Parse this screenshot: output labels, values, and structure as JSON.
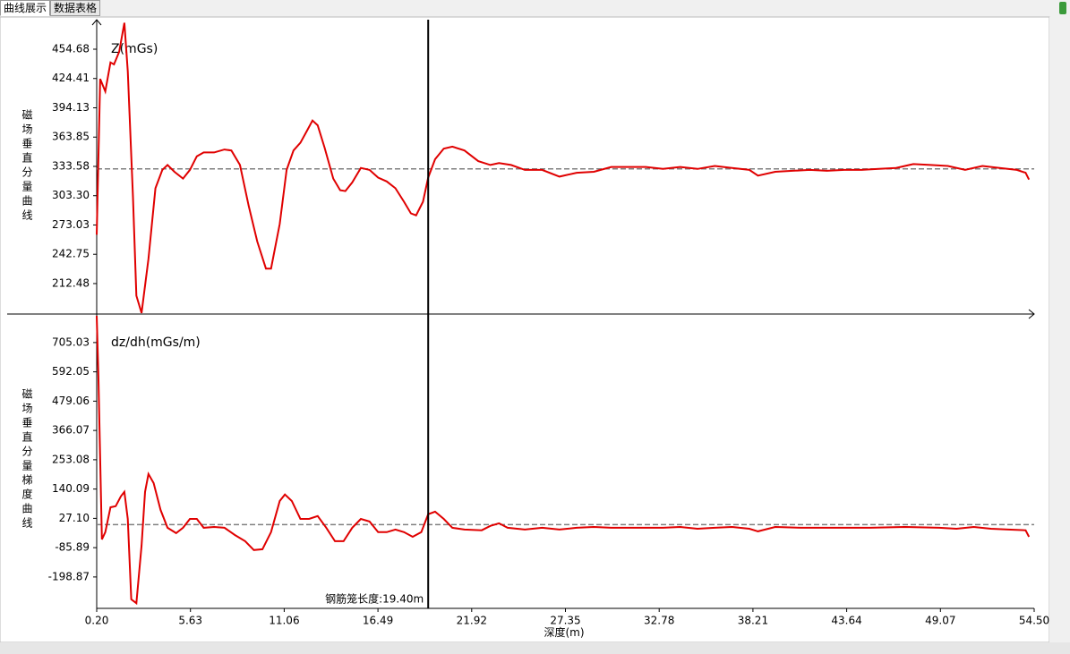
{
  "tabs": [
    "曲线展示",
    "数据表格"
  ],
  "chart_data": [
    {
      "type": "line",
      "title": "Z(mGs)",
      "ylabel": "磁场垂直分量曲线",
      "xlim": [
        0.2,
        54.5
      ],
      "ylim": [
        181,
        485.2
      ],
      "yticks": [
        454.68,
        424.41,
        394.13,
        363.85,
        333.58,
        {
          "value": 303.3,
          "label": "303.30"
        },
        273.03,
        242.75,
        212.48
      ],
      "reference": 331,
      "x": [
        0.2,
        0.4,
        0.7,
        1.0,
        1.2,
        1.5,
        1.8,
        2.0,
        2.3,
        2.5,
        2.8,
        3.2,
        3.6,
        4.0,
        4.3,
        4.7,
        5.2,
        5.6,
        6.0,
        6.4,
        7.0,
        7.6,
        8.0,
        8.5,
        9.0,
        9.5,
        10.0,
        10.3,
        10.8,
        11.2,
        11.6,
        12.0,
        12.4,
        12.7,
        13.0,
        13.4,
        13.9,
        14.3,
        14.6,
        15.0,
        15.5,
        16.0,
        16.5,
        17.0,
        17.5,
        18.0,
        18.4,
        18.7,
        19.1,
        19.4,
        19.8,
        20.3,
        20.8,
        21.5,
        22.3,
        23.0,
        23.5,
        24.2,
        25.0,
        26.0,
        27.0,
        28.0,
        29.0,
        30.0,
        31.0,
        32.0,
        33.0,
        34.0,
        35.0,
        36.0,
        37.0,
        38.0,
        38.5,
        39.5,
        40.5,
        41.5,
        42.5,
        43.5,
        44.5,
        45.5,
        46.5,
        47.5,
        48.5,
        49.5,
        50.5,
        51.5,
        52.5,
        53.5,
        54.0,
        54.2
      ],
      "series": [
        {
          "color": "#e00000",
          "values": [
            263,
            424,
            411,
            441,
            439,
            452,
            482,
            432,
            302,
            200,
            182,
            238,
            311,
            330,
            335,
            328,
            321,
            330,
            344,
            348,
            348,
            351,
            350,
            335,
            293,
            256,
            228,
            228,
            274,
            330,
            350,
            358,
            371,
            381,
            376,
            353,
            321,
            309,
            308,
            317,
            332,
            330,
            322,
            318,
            311,
            297,
            285,
            283,
            297,
            322,
            341,
            352,
            354,
            350,
            339,
            335,
            337,
            335,
            330,
            330,
            323,
            327,
            328,
            333,
            333,
            333,
            331,
            333,
            331,
            334,
            332,
            330,
            324,
            328,
            329,
            330,
            329,
            330,
            330,
            331,
            332,
            336,
            335,
            334,
            330,
            334,
            332,
            330,
            327,
            320
          ]
        }
      ]
    },
    {
      "type": "line",
      "title": "dz/dh(mGs/m)",
      "ylabel": "磁场垂直分量梯度曲线",
      "xlabel": "深度(m)",
      "xlim": [
        0.2,
        54.5
      ],
      "ylim": [
        -320,
        815
      ],
      "xticks": [
        {
          "value": 0.2,
          "label": "0.20"
        },
        5.63,
        11.06,
        16.49,
        21.92,
        27.35,
        32.78,
        38.21,
        43.64,
        49.07,
        {
          "value": 54.5,
          "label": "54.50"
        }
      ],
      "yticks": [
        705.03,
        592.05,
        479.06,
        366.07,
        253.08,
        140.09,
        {
          "value": 27.1,
          "label": "27.10"
        },
        -85.89,
        -198.87
      ],
      "reference": 3,
      "marker": {
        "x": 19.4,
        "label": "钢筋笼长度:19.40m"
      },
      "x": [
        0.2,
        0.3,
        0.5,
        0.7,
        1.0,
        1.3,
        1.6,
        1.8,
        2.0,
        2.2,
        2.5,
        2.8,
        3.0,
        3.2,
        3.5,
        3.9,
        4.3,
        4.8,
        5.2,
        5.6,
        6.0,
        6.4,
        7.0,
        7.6,
        8.2,
        8.8,
        9.3,
        9.8,
        10.3,
        10.8,
        11.1,
        11.5,
        12.0,
        12.5,
        13.0,
        13.5,
        14.0,
        14.5,
        15.0,
        15.5,
        16.0,
        16.5,
        17.0,
        17.5,
        18.0,
        18.5,
        19.0,
        19.4,
        19.8,
        20.3,
        20.8,
        21.5,
        22.5,
        23.0,
        23.5,
        24.0,
        25.0,
        26.0,
        27.0,
        28.0,
        29.0,
        30.0,
        31.0,
        32.0,
        33.0,
        34.0,
        35.0,
        36.0,
        37.0,
        38.0,
        38.5,
        39.5,
        41.0,
        43.0,
        45.0,
        47.0,
        49.0,
        50.0,
        51.0,
        52.0,
        53.0,
        54.0,
        54.2
      ],
      "series": [
        {
          "color": "#e00000",
          "values": [
            808,
            577,
            -54,
            -26,
            70,
            74,
            112,
            129,
            25,
            -285,
            -300,
            -78,
            129,
            198,
            163,
            60,
            -9,
            -30,
            -9,
            25,
            25,
            -9,
            -6,
            -9,
            -37,
            -61,
            -95,
            -92,
            -26,
            94,
            119,
            94,
            25,
            25,
            36,
            -9,
            -61,
            -61,
            -9,
            25,
            15,
            -26,
            -26,
            -16,
            -26,
            -44,
            -26,
            43,
            53,
            25,
            -9,
            -16,
            -19,
            -2,
            8,
            -9,
            -16,
            -9,
            -16,
            -9,
            -6,
            -9,
            -9,
            -9,
            -9,
            -6,
            -13,
            -9,
            -6,
            -13,
            -23,
            -6,
            -9,
            -9,
            -9,
            -6,
            -9,
            -13,
            -6,
            -13,
            -16,
            -19,
            -44
          ]
        }
      ]
    }
  ]
}
